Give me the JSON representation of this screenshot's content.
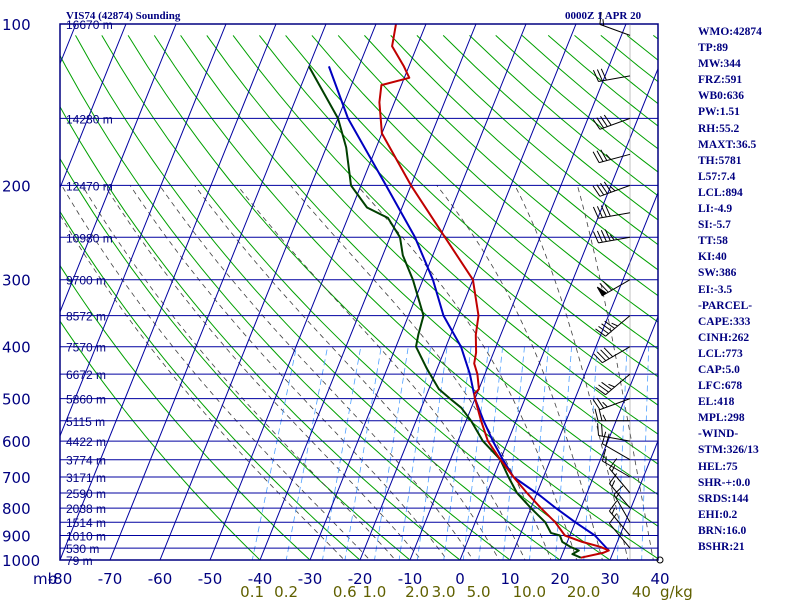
{
  "header": {
    "station": "VIS74 (42874) Sounding",
    "time": "0000Z  1 APR 20"
  },
  "params": [
    "WMO:42874",
    "TP:89",
    "MW:344",
    "FRZ:591",
    "WB0:636",
    "PW:1.51",
    "RH:55.2",
    "MAXT:36.5",
    "TH:5781",
    "L57:7.4",
    "LCL:894",
    "LI:-4.9",
    "SI:-5.7",
    "TT:58",
    "KI:40",
    "SW:386",
    "EI:-3.5",
    "-PARCEL-",
    "CAPE:333",
    "CINH:262",
    "LCL:773",
    "CAP:5.0",
    "LFC:678",
    "EL:418",
    "MPL:298",
    "-WIND-",
    "STM:326/13",
    "HEL:75",
    "SHR-+:0.0",
    "SRDS:144",
    "EHI:0.2",
    "BRN:16.0",
    "BSHR:21"
  ],
  "colors": {
    "frame": "#000080",
    "grid": "#0000a0",
    "dry_adiabat": "#00a000",
    "moist_adiabat": "#404040",
    "mixing_ratio": "#4fa0ff",
    "temperature": "#c00000",
    "dewpoint": "#004000",
    "parcel": "#0000c0",
    "param_text": "#000080",
    "mixing_label": "#606000",
    "barbs": "#000000"
  },
  "chart_data": {
    "type": "skew-t",
    "pressure_label": "mb",
    "mixing_ratio_unit": "g/kg",
    "pressure_ticks": [
      100,
      200,
      300,
      400,
      500,
      600,
      700,
      800,
      900,
      1000
    ],
    "temperature_ticks": [
      -80,
      -70,
      -60,
      -50,
      -40,
      -30,
      -20,
      -10,
      0,
      10,
      20,
      30,
      40
    ],
    "height_labels": [
      {
        "p": 100,
        "label": "16670 m"
      },
      {
        "p": 150,
        "label": "14280 m"
      },
      {
        "p": 200,
        "label": "12470 m"
      },
      {
        "p": 250,
        "label": "10980 m"
      },
      {
        "p": 300,
        "label": "9700 m"
      },
      {
        "p": 350,
        "label": "8572 m"
      },
      {
        "p": 400,
        "label": "7570 m"
      },
      {
        "p": 450,
        "label": "6672 m"
      },
      {
        "p": 500,
        "label": "5860 m"
      },
      {
        "p": 550,
        "label": "5115 m"
      },
      {
        "p": 600,
        "label": "4422 m"
      },
      {
        "p": 650,
        "label": "3774 m"
      },
      {
        "p": 700,
        "label": "3171 m"
      },
      {
        "p": 750,
        "label": "2590 m"
      },
      {
        "p": 800,
        "label": "2038 m"
      },
      {
        "p": 850,
        "label": "1514 m"
      },
      {
        "p": 900,
        "label": "1010 m"
      },
      {
        "p": 950,
        "label": "530 m"
      },
      {
        "p": 1000,
        "label": "79 m"
      }
    ],
    "mixing_ratio_labels": [
      {
        "w": 0.1,
        "label": "0.1"
      },
      {
        "w": 0.2,
        "label": "0.2"
      },
      {
        "w": 0.6,
        "label": "0.6"
      },
      {
        "w": 1.0,
        "label": "1.0"
      },
      {
        "w": 2.0,
        "label": "2.0"
      },
      {
        "w": 3.0,
        "label": "3.0"
      },
      {
        "w": 5.0,
        "label": "5.0"
      },
      {
        "w": 10.0,
        "label": "10.0"
      },
      {
        "w": 20.0,
        "label": "20.0"
      },
      {
        "w": 40.0,
        "label": "40"
      }
    ],
    "temperature_profile": [
      [
        990,
        24
      ],
      [
        970,
        28
      ],
      [
        960,
        29
      ],
      [
        945,
        27
      ],
      [
        925,
        23
      ],
      [
        900,
        19
      ],
      [
        850,
        16
      ],
      [
        800,
        12
      ],
      [
        750,
        8
      ],
      [
        700,
        4
      ],
      [
        650,
        0
      ],
      [
        600,
        -4
      ],
      [
        550,
        -7
      ],
      [
        500,
        -10
      ],
      [
        490,
        -10.5
      ],
      [
        480,
        -10
      ],
      [
        450,
        -11.5
      ],
      [
        430,
        -13
      ],
      [
        410,
        -13.5
      ],
      [
        400,
        -14
      ],
      [
        380,
        -15
      ],
      [
        350,
        -16
      ],
      [
        300,
        -20
      ],
      [
        250,
        -29
      ],
      [
        200,
        -40
      ],
      [
        160,
        -50
      ],
      [
        140,
        -53
      ],
      [
        130,
        -54
      ],
      [
        126,
        -49
      ],
      [
        120,
        -51
      ],
      [
        110,
        -55
      ],
      [
        100,
        -56
      ]
    ],
    "dewpoint_profile": [
      [
        990,
        24
      ],
      [
        975,
        22
      ],
      [
        960,
        23
      ],
      [
        945,
        21
      ],
      [
        925,
        19
      ],
      [
        900,
        18
      ],
      [
        890,
        16
      ],
      [
        850,
        14
      ],
      [
        800,
        10
      ],
      [
        750,
        6
      ],
      [
        700,
        3
      ],
      [
        650,
        0
      ],
      [
        600,
        -5
      ],
      [
        550,
        -9
      ],
      [
        520,
        -12
      ],
      [
        500,
        -15
      ],
      [
        480,
        -18
      ],
      [
        440,
        -22
      ],
      [
        400,
        -26
      ],
      [
        380,
        -26.5
      ],
      [
        350,
        -27
      ],
      [
        300,
        -32
      ],
      [
        270,
        -36
      ],
      [
        250,
        -38
      ],
      [
        230,
        -42
      ],
      [
        220,
        -47
      ],
      [
        200,
        -52
      ],
      [
        170,
        -56
      ],
      [
        150,
        -60
      ],
      [
        120,
        -70
      ]
    ],
    "parcel_profile": [
      [
        960,
        29
      ],
      [
        900,
        25
      ],
      [
        850,
        20
      ],
      [
        800,
        15
      ],
      [
        760,
        11
      ],
      [
        700,
        4
      ],
      [
        650,
        0.5
      ],
      [
        600,
        -3
      ],
      [
        550,
        -6.5
      ],
      [
        500,
        -10
      ],
      [
        450,
        -13
      ],
      [
        400,
        -17
      ],
      [
        350,
        -23
      ],
      [
        300,
        -28
      ],
      [
        250,
        -35
      ],
      [
        200,
        -45
      ],
      [
        150,
        -58
      ],
      [
        120,
        -66
      ]
    ],
    "wind_barbs": [
      {
        "p": 105,
        "dir": 290,
        "spd": 15
      },
      {
        "p": 125,
        "dir": 260,
        "spd": 30
      },
      {
        "p": 150,
        "dir": 250,
        "spd": 40
      },
      {
        "p": 175,
        "dir": 255,
        "spd": 35
      },
      {
        "p": 200,
        "dir": 250,
        "spd": 45
      },
      {
        "p": 225,
        "dir": 260,
        "spd": 40
      },
      {
        "p": 250,
        "dir": 260,
        "spd": 45
      },
      {
        "p": 300,
        "dir": 240,
        "spd": 70
      },
      {
        "p": 350,
        "dir": 230,
        "spd": 45
      },
      {
        "p": 400,
        "dir": 240,
        "spd": 40
      },
      {
        "p": 450,
        "dir": 230,
        "spd": 35
      },
      {
        "p": 500,
        "dir": 250,
        "spd": 25
      },
      {
        "p": 550,
        "dir": 270,
        "spd": 25
      },
      {
        "p": 600,
        "dir": 280,
        "spd": 20
      },
      {
        "p": 650,
        "dir": 300,
        "spd": 20
      },
      {
        "p": 700,
        "dir": 300,
        "spd": 15
      },
      {
        "p": 750,
        "dir": 320,
        "spd": 15
      },
      {
        "p": 800,
        "dir": 320,
        "spd": 15
      },
      {
        "p": 850,
        "dir": 330,
        "spd": 15
      },
      {
        "p": 900,
        "dir": 320,
        "spd": 15
      },
      {
        "p": 950,
        "dir": 320,
        "spd": 10
      },
      {
        "p": 1000,
        "dir": 0,
        "spd": 0
      }
    ]
  }
}
